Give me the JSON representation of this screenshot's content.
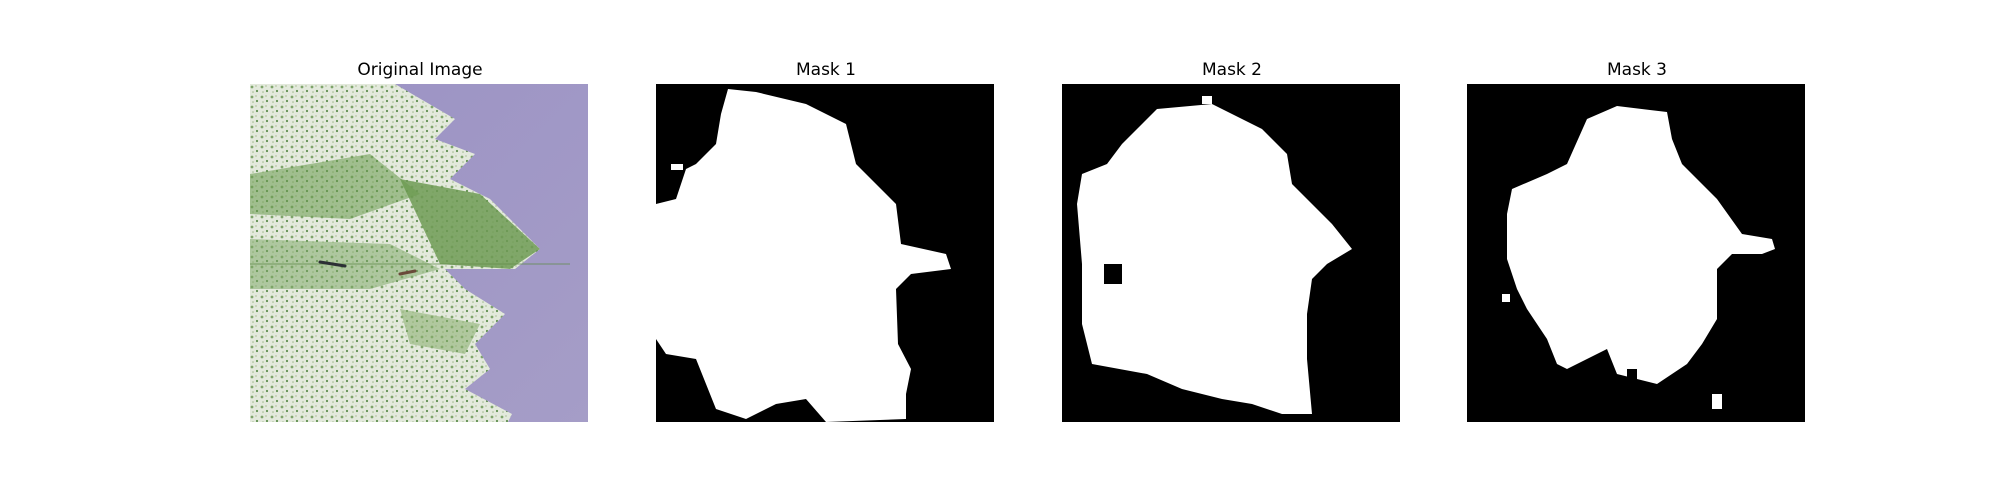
{
  "panels": [
    {
      "title": "Original Image"
    },
    {
      "title": "Mask 1"
    },
    {
      "title": "Mask 2"
    },
    {
      "title": "Mask 3"
    }
  ],
  "colors": {
    "background": "#9a93bf",
    "leaf_light": "#dfe6d8",
    "leaf_green": "#6e9a52",
    "mask_fg": "#ffffff",
    "mask_bg": "#000000"
  }
}
